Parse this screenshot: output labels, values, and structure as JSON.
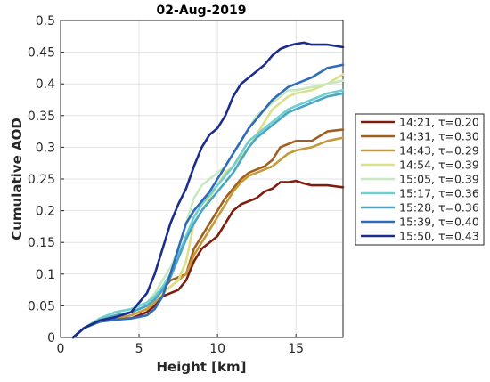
{
  "chart_data": {
    "type": "line",
    "title": "02-Aug-2019",
    "xlabel": "Height [km]",
    "ylabel": "Cumulative AOD",
    "xlim": [
      0,
      18
    ],
    "ylim": [
      0,
      0.5
    ],
    "xticks": [
      0,
      5,
      10,
      15
    ],
    "yticks": [
      0,
      0.05,
      0.1,
      0.15,
      0.2,
      0.25,
      0.3,
      0.35,
      0.4,
      0.45,
      0.5
    ],
    "grid": true,
    "legend_position": "right",
    "series": [
      {
        "name": "14:21, τ=0.20",
        "color": "#7f1d0e",
        "x": [
          0.8,
          1.5,
          2.5,
          3.5,
          4.5,
          5.5,
          6.0,
          6.5,
          7.0,
          7.5,
          8.0,
          8.5,
          9.0,
          9.5,
          10.0,
          10.5,
          11.0,
          11.5,
          12.0,
          12.5,
          13.0,
          13.5,
          14.0,
          14.5,
          15.0,
          15.5,
          16.0,
          16.5,
          17.0,
          18.0
        ],
        "y": [
          0.0,
          0.015,
          0.025,
          0.03,
          0.03,
          0.04,
          0.05,
          0.065,
          0.07,
          0.075,
          0.09,
          0.12,
          0.14,
          0.15,
          0.16,
          0.18,
          0.2,
          0.21,
          0.215,
          0.22,
          0.23,
          0.235,
          0.245,
          0.245,
          0.247,
          0.243,
          0.24,
          0.24,
          0.24,
          0.237
        ]
      },
      {
        "name": "14:31, τ=0.30",
        "color": "#a0601d",
        "x": [
          0.8,
          1.5,
          2.5,
          3.5,
          4.5,
          5.5,
          6.0,
          6.5,
          7.0,
          7.5,
          8.0,
          8.5,
          9.0,
          9.5,
          10.0,
          10.5,
          11.0,
          11.5,
          12.0,
          12.5,
          13.0,
          13.5,
          14.0,
          14.5,
          15.0,
          16.0,
          17.0,
          18.0
        ],
        "y": [
          0.0,
          0.015,
          0.027,
          0.035,
          0.04,
          0.05,
          0.06,
          0.075,
          0.09,
          0.095,
          0.1,
          0.14,
          0.16,
          0.18,
          0.2,
          0.22,
          0.235,
          0.25,
          0.26,
          0.265,
          0.27,
          0.28,
          0.3,
          0.305,
          0.31,
          0.31,
          0.325,
          0.328
        ]
      },
      {
        "name": "14:43, τ=0.29",
        "color": "#c49a3c",
        "x": [
          0.8,
          1.5,
          2.5,
          3.5,
          4.5,
          5.5,
          6.0,
          6.5,
          7.0,
          7.5,
          8.0,
          8.5,
          9.0,
          9.5,
          10.0,
          10.5,
          11.0,
          11.5,
          12.0,
          12.5,
          13.0,
          13.5,
          14.0,
          14.5,
          15.0,
          16.0,
          17.0,
          18.0
        ],
        "y": [
          0.0,
          0.015,
          0.025,
          0.03,
          0.035,
          0.045,
          0.055,
          0.07,
          0.08,
          0.09,
          0.1,
          0.13,
          0.15,
          0.17,
          0.19,
          0.21,
          0.23,
          0.245,
          0.255,
          0.26,
          0.265,
          0.27,
          0.28,
          0.29,
          0.295,
          0.3,
          0.31,
          0.315
        ]
      },
      {
        "name": "14:54, τ=0.39",
        "color": "#dde08a",
        "x": [
          0.8,
          1.5,
          2.5,
          3.5,
          4.5,
          5.5,
          6.0,
          6.5,
          7.0,
          7.5,
          8.0,
          8.5,
          9.0,
          9.5,
          10.0,
          10.5,
          11.0,
          11.5,
          12.0,
          12.5,
          13.0,
          13.5,
          14.0,
          14.5,
          15.0,
          16.0,
          17.0,
          18.0
        ],
        "y": [
          0.0,
          0.015,
          0.025,
          0.035,
          0.04,
          0.05,
          0.06,
          0.07,
          0.08,
          0.09,
          0.12,
          0.18,
          0.2,
          0.22,
          0.24,
          0.26,
          0.27,
          0.285,
          0.3,
          0.32,
          0.34,
          0.36,
          0.37,
          0.38,
          0.385,
          0.39,
          0.4,
          0.415
        ]
      },
      {
        "name": "15:05, τ=0.39",
        "color": "#c7e9c0",
        "x": [
          0.8,
          1.5,
          2.5,
          3.5,
          4.5,
          5.5,
          6.0,
          6.5,
          7.0,
          7.5,
          8.0,
          8.5,
          9.0,
          9.5,
          10.0,
          10.5,
          11.0,
          11.5,
          12.0,
          12.5,
          13.0,
          13.5,
          14.0,
          14.5,
          15.0,
          16.0,
          17.0,
          18.0
        ],
        "y": [
          0.0,
          0.015,
          0.03,
          0.04,
          0.045,
          0.055,
          0.07,
          0.09,
          0.11,
          0.14,
          0.18,
          0.22,
          0.24,
          0.25,
          0.26,
          0.27,
          0.29,
          0.31,
          0.33,
          0.35,
          0.36,
          0.37,
          0.38,
          0.39,
          0.39,
          0.395,
          0.4,
          0.405
        ]
      },
      {
        "name": "15:17, τ=0.36",
        "color": "#6fcfcf",
        "x": [
          0.8,
          1.5,
          2.5,
          3.5,
          4.5,
          5.5,
          6.0,
          6.5,
          7.0,
          7.5,
          8.0,
          8.5,
          9.0,
          9.5,
          10.0,
          10.5,
          11.0,
          11.5,
          12.0,
          12.5,
          13.0,
          13.5,
          14.0,
          14.5,
          15.0,
          16.0,
          17.0,
          18.0
        ],
        "y": [
          0.0,
          0.015,
          0.03,
          0.04,
          0.045,
          0.055,
          0.065,
          0.08,
          0.1,
          0.13,
          0.16,
          0.19,
          0.21,
          0.225,
          0.24,
          0.255,
          0.27,
          0.29,
          0.31,
          0.32,
          0.33,
          0.34,
          0.35,
          0.36,
          0.365,
          0.375,
          0.385,
          0.39
        ]
      },
      {
        "name": "15:28, τ=0.36",
        "color": "#4aa3c8",
        "x": [
          0.8,
          1.5,
          2.5,
          3.5,
          4.5,
          5.5,
          6.0,
          6.5,
          7.0,
          7.5,
          8.0,
          8.5,
          9.0,
          9.5,
          10.0,
          10.5,
          11.0,
          11.5,
          12.0,
          12.5,
          13.0,
          13.5,
          14.0,
          14.5,
          15.0,
          16.0,
          17.0,
          18.0
        ],
        "y": [
          0.0,
          0.015,
          0.027,
          0.035,
          0.04,
          0.05,
          0.06,
          0.075,
          0.095,
          0.125,
          0.155,
          0.18,
          0.2,
          0.215,
          0.23,
          0.245,
          0.26,
          0.28,
          0.3,
          0.315,
          0.325,
          0.335,
          0.345,
          0.355,
          0.36,
          0.37,
          0.38,
          0.385
        ]
      },
      {
        "name": "15:39, τ=0.40",
        "color": "#2f6bb8",
        "x": [
          0.8,
          1.5,
          2.5,
          3.5,
          4.5,
          5.5,
          6.0,
          6.5,
          7.0,
          7.5,
          8.0,
          8.5,
          9.0,
          9.5,
          10.0,
          10.5,
          11.0,
          11.5,
          12.0,
          12.5,
          13.0,
          13.5,
          14.0,
          14.5,
          15.0,
          16.0,
          17.0,
          18.0
        ],
        "y": [
          0.0,
          0.015,
          0.025,
          0.028,
          0.03,
          0.035,
          0.045,
          0.065,
          0.1,
          0.14,
          0.18,
          0.2,
          0.215,
          0.23,
          0.25,
          0.27,
          0.29,
          0.31,
          0.33,
          0.345,
          0.36,
          0.375,
          0.385,
          0.395,
          0.4,
          0.41,
          0.425,
          0.43
        ]
      },
      {
        "name": "15:50, τ=0.43",
        "color": "#1b2c8f",
        "x": [
          0.8,
          1.5,
          2.5,
          3.5,
          4.5,
          5.5,
          6.0,
          6.5,
          7.0,
          7.5,
          8.0,
          8.5,
          9.0,
          9.5,
          10.0,
          10.5,
          11.0,
          11.5,
          12.0,
          12.5,
          13.0,
          13.5,
          14.0,
          14.5,
          15.0,
          15.5,
          16.0,
          16.5,
          17.0,
          18.0
        ],
        "y": [
          0.0,
          0.015,
          0.027,
          0.032,
          0.04,
          0.07,
          0.1,
          0.14,
          0.18,
          0.21,
          0.235,
          0.27,
          0.3,
          0.32,
          0.33,
          0.35,
          0.38,
          0.4,
          0.41,
          0.42,
          0.43,
          0.445,
          0.455,
          0.46,
          0.463,
          0.465,
          0.462,
          0.462,
          0.462,
          0.458
        ]
      }
    ]
  }
}
